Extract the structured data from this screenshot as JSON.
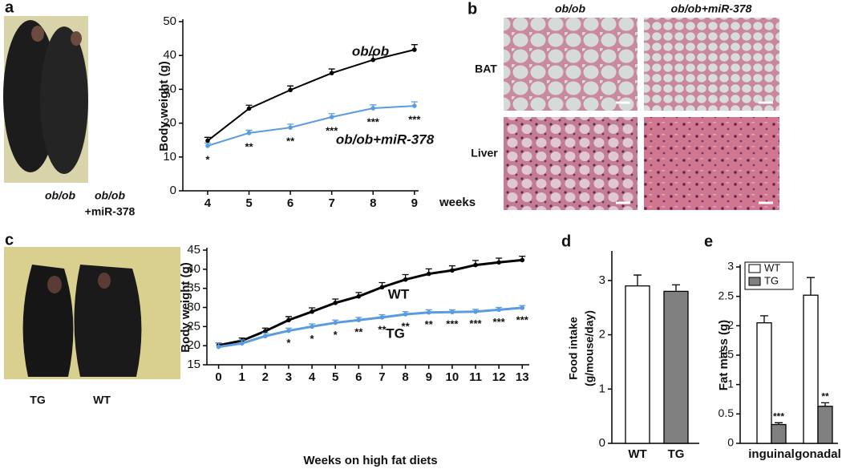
{
  "panel_letters": [
    "a",
    "b",
    "c",
    "d",
    "e"
  ],
  "photo_a": [
    "ob/ob",
    "ob/ob",
    "+miR-378"
  ],
  "panel_b": {
    "columns": [
      "ob/ob",
      "ob/ob+miR-378"
    ],
    "rows": [
      "BAT",
      "Liver"
    ]
  },
  "photo_c": [
    "TG",
    "WT"
  ],
  "chart_data": [
    {
      "type": "line",
      "ylabel": "Body weight (g)",
      "xlabel": "weeks",
      "x": [
        4,
        5,
        6,
        7,
        8,
        9
      ],
      "xlim": [
        3.4,
        9.1
      ],
      "xticks": [
        4,
        5,
        6,
        7,
        8,
        9
      ],
      "ylim": [
        0,
        50
      ],
      "yticks": [
        0,
        10,
        20,
        30,
        40,
        50
      ],
      "series": [
        {
          "name": "ob/ob",
          "color": "#000000",
          "values": [
            14.8,
            24.3,
            29.8,
            34.8,
            38.7,
            41.7
          ],
          "errors": [
            1.0,
            1.0,
            1.2,
            1.2,
            1.5,
            1.5
          ]
        },
        {
          "name": "ob/ob+miR-378",
          "color": "#5b9bdf",
          "values": [
            13.3,
            17.1,
            18.7,
            21.8,
            24.4,
            25.1
          ],
          "errors": [
            0.8,
            0.8,
            1.0,
            1.0,
            1.0,
            1.2
          ],
          "significance": [
            "*",
            "**",
            "**",
            "***",
            "***",
            "***"
          ]
        }
      ]
    },
    {
      "type": "line",
      "ylabel": "Body weight (g)",
      "xlabel": "Weeks on high fat diets",
      "x": [
        0,
        1,
        2,
        3,
        4,
        5,
        6,
        7,
        8,
        9,
        10,
        11,
        12,
        13
      ],
      "xlim": [
        -0.5,
        13.3
      ],
      "xticks": [
        0,
        1,
        2,
        3,
        4,
        5,
        6,
        7,
        8,
        9,
        10,
        11,
        12,
        13
      ],
      "ylim": [
        15,
        45
      ],
      "yticks": [
        15,
        20,
        25,
        30,
        35,
        40,
        45
      ],
      "series": [
        {
          "name": "WT",
          "color": "#000000",
          "values": [
            20.1,
            21.3,
            23.8,
            26.7,
            28.9,
            31.2,
            32.9,
            35.3,
            37.3,
            38.8,
            39.7,
            41.1,
            41.8,
            42.4
          ],
          "errors": [
            0.6,
            0.7,
            0.8,
            0.9,
            1.0,
            1.0,
            1.0,
            1.2,
            1.3,
            1.3,
            1.2,
            1.2,
            1.1,
            1.0
          ]
        },
        {
          "name": "TG",
          "color": "#5b9bdf",
          "values": [
            19.7,
            20.6,
            22.5,
            23.9,
            25.0,
            26.0,
            26.7,
            27.4,
            28.2,
            28.7,
            28.8,
            28.9,
            29.4,
            29.9
          ],
          "errors": [
            1.0,
            0.9,
            0.8,
            0.7,
            0.7,
            0.7,
            0.7,
            0.7,
            0.7,
            0.7,
            0.6,
            0.6,
            0.6,
            0.6
          ],
          "significance": [
            null,
            null,
            null,
            "*",
            "*",
            "*",
            "**",
            "**",
            "**",
            "**",
            "***",
            "***",
            "***",
            "***"
          ]
        }
      ]
    },
    {
      "type": "bar",
      "ylabel": [
        "Food intake",
        "(g/mouse/day)"
      ],
      "categories": [
        "WT",
        "TG"
      ],
      "values": [
        2.9,
        2.8
      ],
      "errors": [
        0.2,
        0.12
      ],
      "colors": [
        "#ffffff",
        "#808080"
      ],
      "ylim": [
        0,
        3.5
      ],
      "yticks": [
        0,
        1,
        2,
        3
      ]
    },
    {
      "type": "bar",
      "ylabel": "Fat mass (g)",
      "legend": "upper left",
      "categories": [
        "inguinal",
        "gonadal"
      ],
      "ylim": [
        0,
        3
      ],
      "yticks": [
        0,
        0.5,
        1,
        1.5,
        2,
        2.5,
        3
      ],
      "series": [
        {
          "name": "WT",
          "color": "#ffffff",
          "values": [
            2.05,
            2.52
          ],
          "errors": [
            0.12,
            0.3
          ]
        },
        {
          "name": "TG",
          "color": "#808080",
          "values": [
            0.32,
            0.63
          ],
          "errors": [
            0.03,
            0.06
          ],
          "significance": [
            "***",
            "**"
          ]
        }
      ]
    }
  ]
}
